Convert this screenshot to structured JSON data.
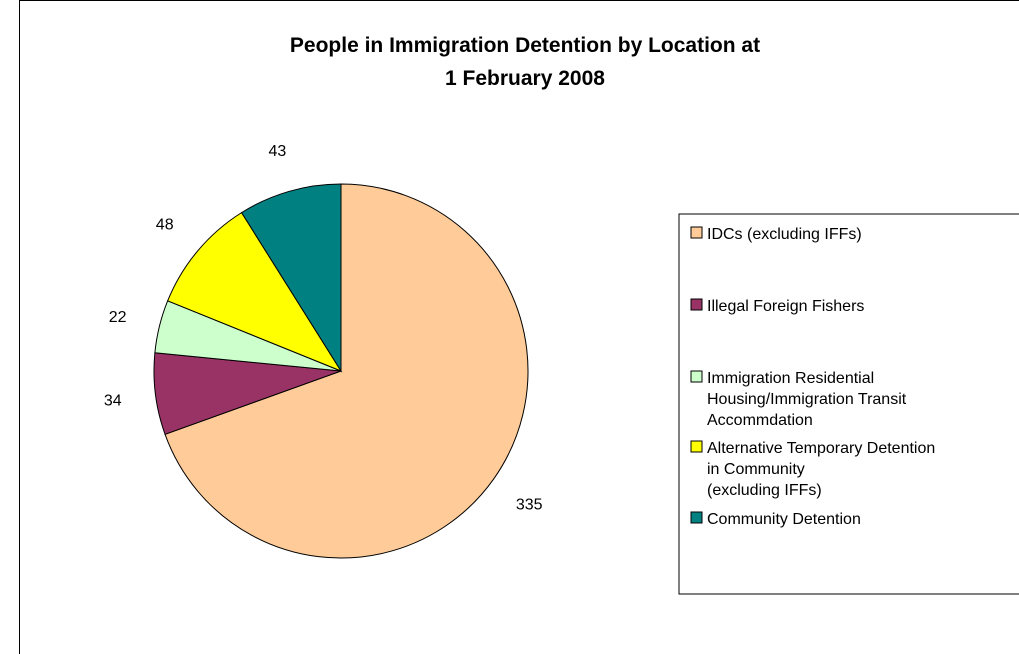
{
  "chart_data": {
    "type": "pie",
    "title_lines": [
      "People in Immigration Detention by Location at",
      "1 February 2008"
    ],
    "categories": [
      "IDCs (excluding IFFs)",
      "Illegal Foreign Fishers",
      "Immigration Residential Housing/Immigration Transit Accommdation",
      "Alternative Temporary Detention in Community (excluding IFFs)",
      "Community Detention"
    ],
    "legend_lines": [
      [
        "IDCs (excluding IFFs)"
      ],
      [
        "Illegal Foreign Fishers"
      ],
      [
        "Immigration Residential",
        "Housing/Immigration Transit",
        "Accommdation"
      ],
      [
        "Alternative Temporary Detention",
        "in Community",
        "(excluding IFFs)"
      ],
      [
        "Community Detention"
      ]
    ],
    "values": [
      335,
      34,
      22,
      48,
      43
    ],
    "data_labels": [
      "335",
      "34",
      "22",
      "48",
      "43"
    ],
    "colors": [
      "#FFCC99",
      "#993366",
      "#CCFFCC",
      "#FFFF00",
      "#008080"
    ],
    "legend_position": "right"
  }
}
